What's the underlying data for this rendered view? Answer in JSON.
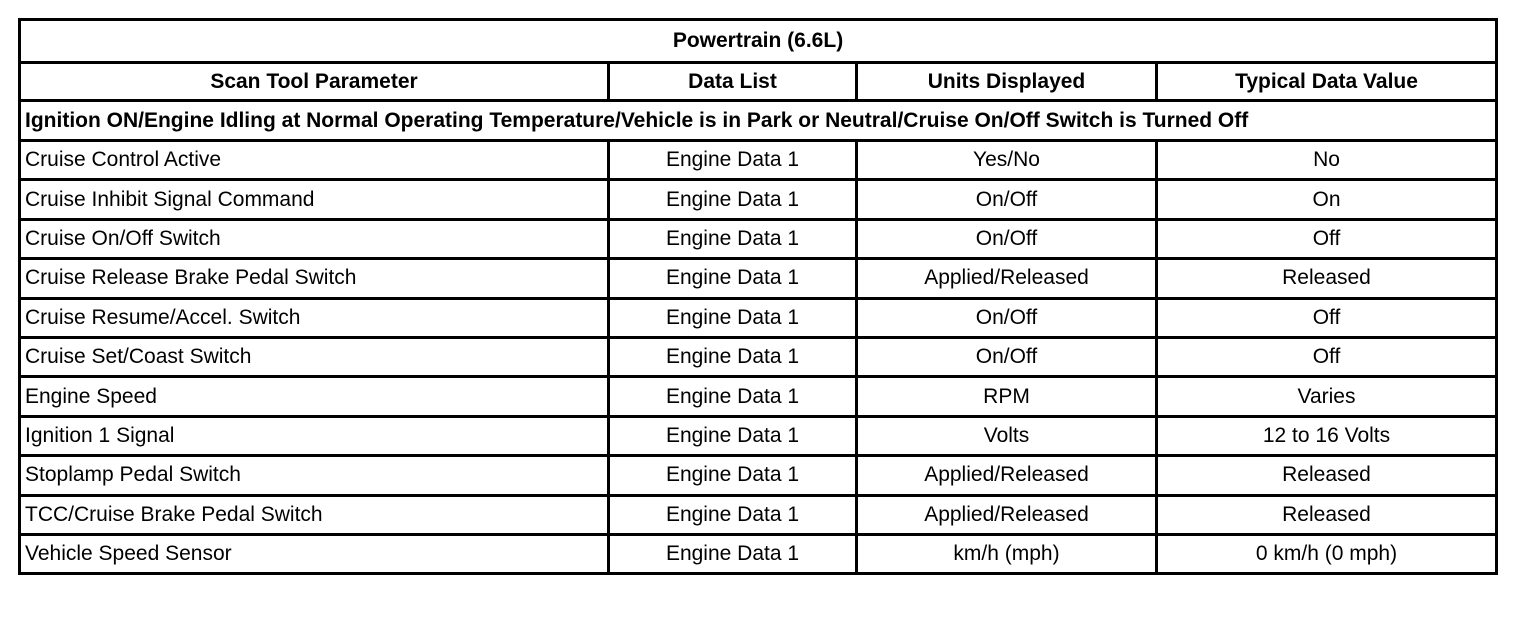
{
  "title": "Powertrain (6.6L)",
  "columns": [
    "Scan Tool Parameter",
    "Data List",
    "Units Displayed",
    "Typical Data Value"
  ],
  "condition": "Ignition ON/Engine Idling at Normal Operating Temperature/Vehicle is in Park or Neutral/Cruise On/Off Switch is Turned Off",
  "rows": [
    [
      "Cruise Control Active",
      "Engine Data 1",
      "Yes/No",
      "No"
    ],
    [
      "Cruise Inhibit Signal Command",
      "Engine Data 1",
      "On/Off",
      "On"
    ],
    [
      "Cruise On/Off Switch",
      "Engine Data 1",
      "On/Off",
      "Off"
    ],
    [
      "Cruise Release Brake Pedal Switch",
      "Engine Data 1",
      "Applied/Released",
      "Released"
    ],
    [
      "Cruise Resume/Accel. Switch",
      "Engine Data 1",
      "On/Off",
      "Off"
    ],
    [
      "Cruise Set/Coast Switch",
      "Engine Data 1",
      "On/Off",
      "Off"
    ],
    [
      "Engine Speed",
      "Engine Data 1",
      "RPM",
      "Varies"
    ],
    [
      "Ignition 1 Signal",
      "Engine Data 1",
      "Volts",
      "12 to 16 Volts"
    ],
    [
      "Stoplamp Pedal Switch",
      "Engine Data 1",
      "Applied/Released",
      "Released"
    ],
    [
      "TCC/Cruise Brake Pedal Switch",
      "Engine Data 1",
      "Applied/Released",
      "Released"
    ],
    [
      "Vehicle Speed Sensor",
      "Engine Data 1",
      "km/h (mph)",
      "0 km/h (0 mph)"
    ]
  ]
}
